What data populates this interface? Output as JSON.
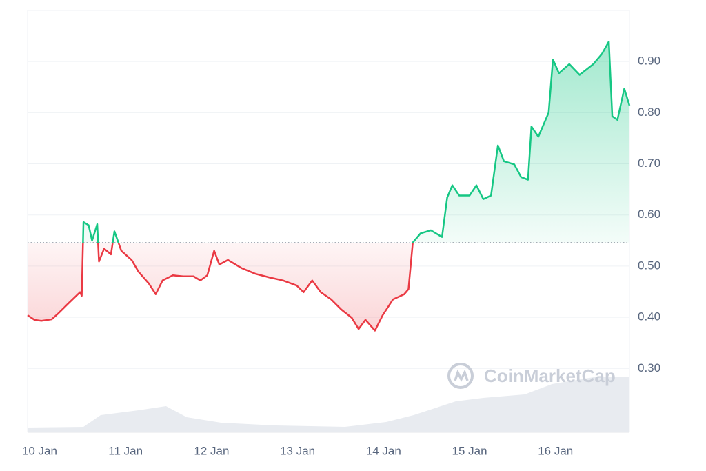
{
  "chart_data": {
    "type": "line",
    "watermark": "CoinMarketCap",
    "baseline": 0.546,
    "up_color": "#16c784",
    "down_color": "#ea3943",
    "grid": true,
    "xlim": [
      -0.14,
      6.86
    ],
    "ylim": [
      0.175,
      1.0
    ],
    "xticks": [
      {
        "value": 0,
        "label": "10 Jan"
      },
      {
        "value": 1,
        "label": "11 Jan"
      },
      {
        "value": 2,
        "label": "12 Jan"
      },
      {
        "value": 3,
        "label": "13 Jan"
      },
      {
        "value": 4,
        "label": "14 Jan"
      },
      {
        "value": 5,
        "label": "15 Jan"
      },
      {
        "value": 6,
        "label": "16 Jan"
      }
    ],
    "yticks": [
      {
        "value": 0.3,
        "label": "0.30"
      },
      {
        "value": 0.4,
        "label": "0.40"
      },
      {
        "value": 0.5,
        "label": "0.50"
      },
      {
        "value": 0.6,
        "label": "0.60"
      },
      {
        "value": 0.7,
        "label": "0.70"
      },
      {
        "value": 0.8,
        "label": "0.80"
      },
      {
        "value": 0.9,
        "label": "0.90"
      }
    ],
    "x": [
      -0.14,
      -0.06,
      0.02,
      0.14,
      0.22,
      0.34,
      0.47,
      0.49,
      0.51,
      0.57,
      0.61,
      0.67,
      0.69,
      0.75,
      0.83,
      0.87,
      0.95,
      1.07,
      1.15,
      1.27,
      1.35,
      1.43,
      1.55,
      1.67,
      1.79,
      1.87,
      1.95,
      2.03,
      2.09,
      2.19,
      2.35,
      2.51,
      2.67,
      2.83,
      2.99,
      3.07,
      3.17,
      3.27,
      3.39,
      3.51,
      3.63,
      3.71,
      3.79,
      3.9,
      3.99,
      4.11,
      4.24,
      4.29,
      4.34,
      4.43,
      4.55,
      4.68,
      4.74,
      4.8,
      4.88,
      5.0,
      5.08,
      5.16,
      5.25,
      5.33,
      5.4,
      5.52,
      5.6,
      5.68,
      5.72,
      5.8,
      5.92,
      5.97,
      6.04,
      6.16,
      6.28,
      6.44,
      6.54,
      6.62,
      6.66,
      6.72,
      6.8,
      6.86
    ],
    "values": [
      0.404,
      0.395,
      0.393,
      0.396,
      0.408,
      0.428,
      0.449,
      0.442,
      0.586,
      0.58,
      0.55,
      0.582,
      0.509,
      0.534,
      0.523,
      0.568,
      0.53,
      0.512,
      0.489,
      0.466,
      0.445,
      0.472,
      0.482,
      0.48,
      0.48,
      0.472,
      0.482,
      0.53,
      0.503,
      0.512,
      0.496,
      0.485,
      0.478,
      0.472,
      0.462,
      0.449,
      0.472,
      0.449,
      0.435,
      0.415,
      0.399,
      0.377,
      0.395,
      0.374,
      0.404,
      0.435,
      0.445,
      0.455,
      0.546,
      0.564,
      0.57,
      0.557,
      0.634,
      0.658,
      0.638,
      0.638,
      0.658,
      0.631,
      0.638,
      0.736,
      0.705,
      0.699,
      0.674,
      0.669,
      0.773,
      0.753,
      0.8,
      0.904,
      0.877,
      0.895,
      0.874,
      0.895,
      0.915,
      0.939,
      0.793,
      0.786,
      0.847,
      0.814
    ],
    "volume": {
      "color": "#e8ebf0",
      "ylim": [
        0,
        612
      ],
      "x": [
        -0.14,
        0.51,
        0.71,
        1.15,
        1.47,
        1.71,
        2.11,
        2.75,
        3.55,
        4.03,
        4.35,
        4.84,
        5.16,
        5.64,
        5.96,
        6.44,
        6.86
      ],
      "values": [
        7,
        8,
        25,
        32,
        38,
        22,
        14,
        10,
        8,
        15,
        25,
        45,
        50,
        55,
        70,
        80,
        80
      ]
    }
  }
}
